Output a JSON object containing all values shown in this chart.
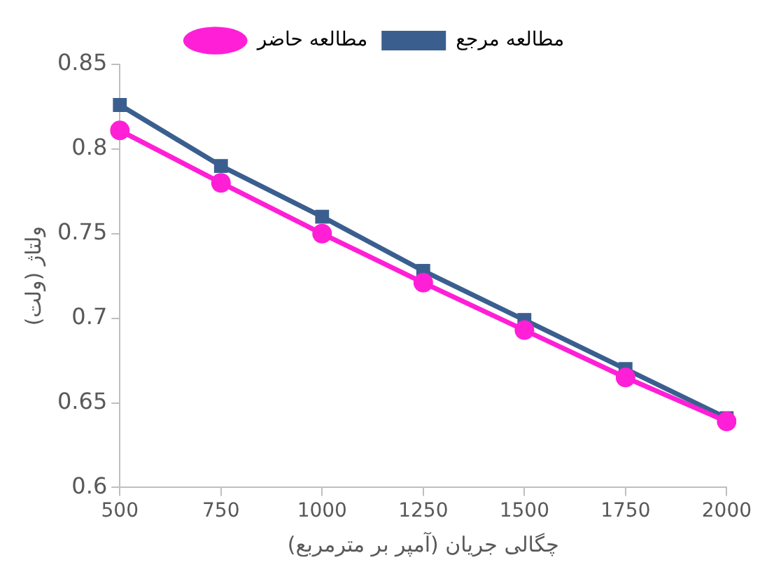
{
  "chart_data": {
    "type": "line",
    "xlabel": "چگالی جریان (آمپر بر مترمربع)",
    "ylabel": "ولتاژ (ولت)",
    "categories": [
      "500",
      "750",
      "1000",
      "1250",
      "1500",
      "1750",
      "2000"
    ],
    "series": [
      {
        "name": "مطالعه مرجع",
        "color": "#3a5f8f",
        "marker": "square",
        "values": [
          0.826,
          0.79,
          0.76,
          0.728,
          0.699,
          0.67,
          0.641
        ]
      },
      {
        "name": "مطالعه حاضر",
        "color": "#ff1fd6",
        "marker": "circle",
        "values": [
          0.811,
          0.78,
          0.75,
          0.721,
          0.693,
          0.665,
          0.639
        ]
      }
    ],
    "ylim": [
      0.6,
      0.85
    ],
    "yticks": [
      0.6,
      0.65,
      0.7,
      0.75,
      0.8,
      0.85
    ],
    "grid": false,
    "legend": "top",
    "line_style": "solid"
  }
}
